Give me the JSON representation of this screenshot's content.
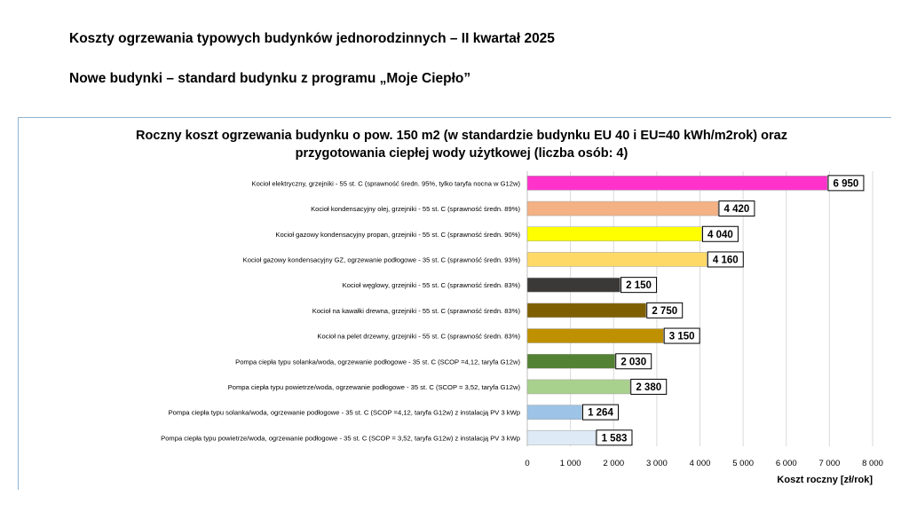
{
  "headings": {
    "main": "Koszty ogrzewania typowych budynków jednorodzinnych – II kwartał 2025",
    "sub": "Nowe budynki – standard budynku z programu „Moje Ciepło”"
  },
  "chart_data": {
    "type": "bar",
    "orientation": "horizontal",
    "title_line1": "Roczny koszt ogrzewania budynku o pow. 150 m2 (w standardzie budynku EU 40 i EU=40 kWh/m2rok) oraz",
    "title_line2": "przygotowania ciepłej wody użytkowej (liczba osób: 4)",
    "xlabel": "Koszt roczny [zł/rok]",
    "xlim": [
      0,
      8000
    ],
    "xticks": [
      0,
      1000,
      2000,
      3000,
      4000,
      5000,
      6000,
      7000,
      8000
    ],
    "xtick_labels": [
      "0",
      "1 000",
      "2 000",
      "3 000",
      "4 000",
      "5 000",
      "6 000",
      "7 000",
      "8 000"
    ],
    "grid": true,
    "categories": [
      "Kocioł elektryczny, grzejniki - 55 st. C (sprawność średn. 95%, tylko taryfa nocna w G12w)",
      "Kocioł kondensacyjny olej, grzejniki - 55 st. C (sprawność średn. 89%)",
      "Kocioł gazowy kondensacyjny propan, grzejniki - 55 st. C (sprawność średn. 90%)",
      "Kocioł gazowy kondensacyjny GZ, ogrzewanie podłogowe - 35 st. C (sprawność średn. 93%)",
      "Kocioł węglowy, grzejniki - 55 st. C (sprawność średn. 83%)",
      "Kocioł na kawałki drewna, grzejniki - 55 st. C (sprawność średn. 83%)",
      "Kocioł na pelet drzewny, grzejniki - 55 st. C (sprawność średn. 83%)",
      "Pompa ciepła typu solanka/woda, ogrzewanie podłogowe - 35 st. C (SCOP =4,12, taryfa G12w)",
      "Pompa ciepła typu powietrze/woda, ogrzewanie podłogowe - 35 st. C (SCOP = 3,52, taryfa G12w)",
      "Pompa ciepła typu solanka/woda, ogrzewanie podłogowe - 35 st. C (SCOP =4,12, taryfa G12w) z instalacją PV 3 kWp",
      "Pompa ciepła typu powietrze/woda, ogrzewanie podłogowe - 35 st. C (SCOP = 3,52, taryfa G12w) z instalacją PV 3 kWp"
    ],
    "values": [
      6950,
      4420,
      4040,
      4160,
      2150,
      2750,
      3150,
      2030,
      2380,
      1264,
      1583
    ],
    "value_labels": [
      "6 950",
      "4 420",
      "4 040",
      "4 160",
      "2 150",
      "2 750",
      "3 150",
      "2 030",
      "2 380",
      "1 264",
      "1 583"
    ],
    "colors": [
      "#ff33cc",
      "#f4b183",
      "#ffff00",
      "#ffd966",
      "#3b3838",
      "#7f6000",
      "#bf9000",
      "#548235",
      "#a9d18e",
      "#9dc3e6",
      "#deebf7"
    ]
  }
}
